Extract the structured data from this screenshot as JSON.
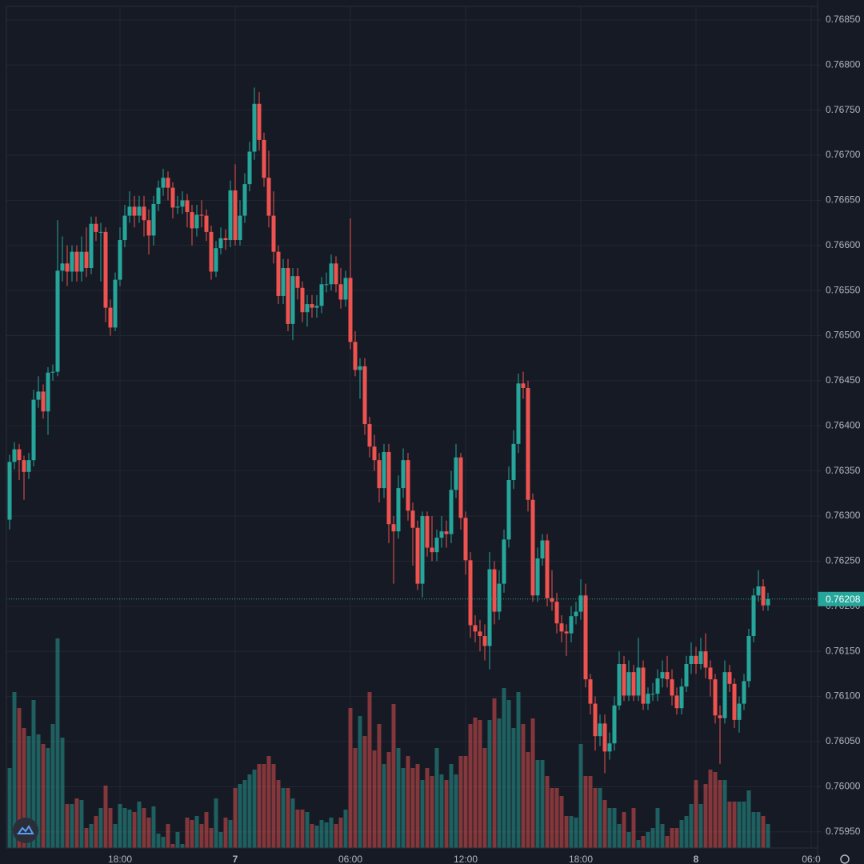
{
  "chart_data": {
    "type": "candlestick",
    "up_color": "#26a69a",
    "down_color": "#ef5350",
    "grid": true,
    "xlim": [
      12.0833,
      54.3333
    ],
    "ylim": [
      0.75932,
      0.76865
    ],
    "xticks": [
      {
        "value": 18,
        "label": "18:00"
      },
      {
        "value": 24,
        "label": "7"
      },
      {
        "value": 30,
        "label": "06:00"
      },
      {
        "value": 36,
        "label": "12:00"
      },
      {
        "value": 42,
        "label": "18:00"
      },
      {
        "value": 48,
        "label": "8"
      },
      {
        "value": 54,
        "label": "06:0"
      }
    ],
    "yticks": [
      {
        "value": 0.7685,
        "label": "0.76850"
      },
      {
        "value": 0.768,
        "label": "0.76800"
      },
      {
        "value": 0.7675,
        "label": "0.76750"
      },
      {
        "value": 0.767,
        "label": "0.76700"
      },
      {
        "value": 0.7665,
        "label": "0.76650"
      },
      {
        "value": 0.766,
        "label": "0.76600"
      },
      {
        "value": 0.7655,
        "label": "0.76550"
      },
      {
        "value": 0.765,
        "label": "0.76500"
      },
      {
        "value": 0.7645,
        "label": "0.76450"
      },
      {
        "value": 0.764,
        "label": "0.76400"
      },
      {
        "value": 0.7635,
        "label": "0.76350"
      },
      {
        "value": 0.763,
        "label": "0.76300"
      },
      {
        "value": 0.7625,
        "label": "0.76250"
      },
      {
        "value": 0.762,
        "label": "0.76200"
      },
      {
        "value": 0.7615,
        "label": "0.76150"
      },
      {
        "value": 0.761,
        "label": "0.76100"
      },
      {
        "value": 0.7605,
        "label": "0.76050"
      },
      {
        "value": 0.76,
        "label": "0.76000"
      },
      {
        "value": 0.7595,
        "label": "0.75950"
      }
    ],
    "last_price": 0.76208,
    "x": [
      12.25,
      12.5,
      12.75,
      13,
      13.25,
      13.5,
      13.75,
      14,
      14.25,
      14.5,
      14.75,
      15,
      15.25,
      15.5,
      15.75,
      16,
      16.25,
      16.5,
      16.75,
      17,
      17.25,
      17.5,
      17.75,
      18,
      18.25,
      18.5,
      18.75,
      19,
      19.25,
      19.5,
      19.75,
      20,
      20.25,
      20.5,
      20.75,
      21,
      21.25,
      21.5,
      21.75,
      22,
      22.25,
      22.5,
      22.75,
      23,
      23.25,
      23.5,
      23.75,
      24,
      24.25,
      24.5,
      24.75,
      25,
      25.25,
      25.5,
      25.75,
      26,
      26.25,
      26.5,
      26.75,
      27,
      27.25,
      27.5,
      27.75,
      28,
      28.25,
      28.5,
      28.75,
      29,
      29.25,
      29.5,
      29.75,
      30,
      30.25,
      30.5,
      30.75,
      31,
      31.25,
      31.5,
      31.75,
      32,
      32.25,
      32.5,
      32.75,
      33,
      33.25,
      33.5,
      33.75,
      34,
      34.25,
      34.5,
      34.75,
      35,
      35.25,
      35.5,
      35.75,
      36,
      36.25,
      36.5,
      36.75,
      37,
      37.25,
      37.5,
      37.75,
      38,
      38.25,
      38.5,
      38.75,
      39,
      39.25,
      39.5,
      39.75,
      40,
      40.25,
      40.5,
      40.75,
      41,
      41.25,
      41.5,
      41.75,
      42,
      42.25,
      42.5,
      42.75,
      43,
      43.25,
      43.5,
      43.75,
      44,
      44.25,
      44.5,
      44.75,
      45,
      45.25,
      45.5,
      45.75,
      46,
      46.25,
      46.5,
      46.75,
      47,
      47.25,
      47.5,
      47.75,
      48,
      48.25,
      48.5,
      48.75,
      49,
      49.25,
      49.5,
      49.75,
      50,
      50.25,
      50.5,
      50.75,
      51,
      51.25,
      51.5,
      51.75
    ],
    "open": [
      0.76296,
      0.7636,
      0.76374,
      0.76362,
      0.76349,
      0.76362,
      0.76429,
      0.76438,
      0.76416,
      0.76459,
      0.7646,
      0.76572,
      0.7658,
      0.76571,
      0.76593,
      0.76571,
      0.76593,
      0.76575,
      0.76624,
      0.76615,
      0.76615,
      0.76531,
      0.76509,
      0.76562,
      0.76606,
      0.76633,
      0.76643,
      0.76633,
      0.76643,
      0.76628,
      0.76611,
      0.76646,
      0.76664,
      0.76675,
      0.76664,
      0.76642,
      0.76643,
      0.7665,
      0.76637,
      0.76619,
      0.76634,
      0.76633,
      0.76615,
      0.76571,
      0.76597,
      0.76608,
      0.76606,
      0.76661,
      0.76606,
      0.76633,
      0.76668,
      0.76704,
      0.76757,
      0.76717,
      0.76675,
      0.76633,
      0.76593,
      0.76544,
      0.76575,
      0.76513,
      0.76566,
      0.76553,
      0.76526,
      0.76535,
      0.76531,
      0.76533,
      0.76557,
      0.76557,
      0.7658,
      0.76557,
      0.7654,
      0.76564,
      0.76493,
      0.76462,
      0.76466,
      0.76402,
      0.76377,
      0.76362,
      0.76331,
      0.76371,
      0.76291,
      0.76283,
      0.76331,
      0.76362,
      0.76306,
      0.76287,
      0.76225,
      0.763,
      0.76265,
      0.7626,
      0.76276,
      0.76283,
      0.7628,
      0.76329,
      0.76365,
      0.76298,
      0.76251,
      0.76179,
      0.76172,
      0.76167,
      0.76156,
      0.76241,
      0.76194,
      0.76225,
      0.76274,
      0.7634,
      0.7638,
      0.76447,
      0.76442,
      0.76318,
      0.76212,
      0.76253,
      0.76273,
      0.76209,
      0.76205,
      0.76181,
      0.76172,
      0.7617,
      0.76189,
      0.76194,
      0.76212,
      0.76119,
      0.76092,
      0.76056,
      0.7607,
      0.76039,
      0.76048,
      0.7609,
      0.76136,
      0.76101,
      0.76127,
      0.76101,
      0.76132,
      0.76092,
      0.76103,
      0.76103,
      0.7612,
      0.76127,
      0.76119,
      0.76101,
      0.76087,
      0.76111,
      0.76136,
      0.76145,
      0.76136,
      0.7615,
      0.76132,
      0.76119,
      0.76079,
      0.76076,
      0.76127,
      0.76114,
      0.76074,
      0.76092,
      0.76117,
      0.76167,
      0.76212,
      0.76222,
      0.76201
    ],
    "high": [
      0.76368,
      0.76382,
      0.7638,
      0.76367,
      0.7637,
      0.7644,
      0.76455,
      0.76446,
      0.76465,
      0.76468,
      0.76628,
      0.7661,
      0.766,
      0.766,
      0.766,
      0.7661,
      0.7662,
      0.76632,
      0.76632,
      0.76625,
      0.7662,
      0.7654,
      0.7657,
      0.7662,
      0.76645,
      0.7666,
      0.76655,
      0.76655,
      0.76655,
      0.7664,
      0.76655,
      0.76672,
      0.76685,
      0.76682,
      0.7667,
      0.76655,
      0.7666,
      0.76657,
      0.76645,
      0.76645,
      0.7665,
      0.7664,
      0.76622,
      0.76605,
      0.7662,
      0.76618,
      0.76672,
      0.7669,
      0.7665,
      0.7668,
      0.76715,
      0.76775,
      0.7677,
      0.76725,
      0.76705,
      0.7666,
      0.766,
      0.76585,
      0.76585,
      0.76575,
      0.76575,
      0.7656,
      0.76545,
      0.76545,
      0.76545,
      0.76565,
      0.7657,
      0.7659,
      0.76588,
      0.76575,
      0.76572,
      0.7663,
      0.76505,
      0.76475,
      0.76475,
      0.7641,
      0.7639,
      0.7637,
      0.7638,
      0.7638,
      0.763,
      0.76345,
      0.76375,
      0.7637,
      0.76315,
      0.76295,
      0.76305,
      0.76305,
      0.763,
      0.76285,
      0.763,
      0.76295,
      0.7635,
      0.7638,
      0.7637,
      0.76305,
      0.7626,
      0.7619,
      0.76185,
      0.7618,
      0.7626,
      0.7625,
      0.7624,
      0.76285,
      0.76355,
      0.76395,
      0.76458,
      0.7646,
      0.7645,
      0.76325,
      0.76265,
      0.7628,
      0.7628,
      0.7624,
      0.76215,
      0.7619,
      0.7618,
      0.762,
      0.76205,
      0.7623,
      0.76225,
      0.76125,
      0.761,
      0.7608,
      0.7608,
      0.7606,
      0.761,
      0.7615,
      0.76145,
      0.7614,
      0.76135,
      0.76165,
      0.7614,
      0.7611,
      0.76115,
      0.7613,
      0.7614,
      0.76145,
      0.7613,
      0.7611,
      0.7612,
      0.76145,
      0.7616,
      0.76155,
      0.76165,
      0.7617,
      0.7614,
      0.76125,
      0.7609,
      0.7614,
      0.76135,
      0.7612,
      0.761,
      0.76125,
      0.76175,
      0.7622,
      0.7624,
      0.7623,
      0.76215
    ],
    "low": [
      0.76285,
      0.76352,
      0.7634,
      0.76318,
      0.76341,
      0.76355,
      0.7642,
      0.76408,
      0.7639,
      0.7645,
      0.76455,
      0.7656,
      0.76555,
      0.7656,
      0.7656,
      0.7656,
      0.76565,
      0.76568,
      0.76605,
      0.7656,
      0.76515,
      0.765,
      0.76505,
      0.76555,
      0.76598,
      0.76625,
      0.7662,
      0.76625,
      0.7661,
      0.7659,
      0.766,
      0.76638,
      0.76655,
      0.7665,
      0.7663,
      0.76635,
      0.76635,
      0.7662,
      0.766,
      0.7661,
      0.7662,
      0.76605,
      0.76562,
      0.76565,
      0.7659,
      0.76595,
      0.76598,
      0.766,
      0.766,
      0.76625,
      0.7666,
      0.76695,
      0.76705,
      0.76665,
      0.7662,
      0.7658,
      0.76535,
      0.76535,
      0.76505,
      0.76495,
      0.7654,
      0.76515,
      0.7651,
      0.7652,
      0.7652,
      0.76525,
      0.76548,
      0.7655,
      0.76548,
      0.7653,
      0.76532,
      0.76485,
      0.76455,
      0.7643,
      0.7639,
      0.76365,
      0.7635,
      0.76315,
      0.7632,
      0.7627,
      0.76225,
      0.76275,
      0.7632,
      0.76295,
      0.76245,
      0.76218,
      0.7621,
      0.76255,
      0.7625,
      0.7625,
      0.76265,
      0.76265,
      0.7627,
      0.7632,
      0.76285,
      0.76235,
      0.76165,
      0.7616,
      0.7615,
      0.7614,
      0.7613,
      0.7618,
      0.76185,
      0.76215,
      0.76265,
      0.7633,
      0.7637,
      0.7643,
      0.76305,
      0.76205,
      0.76205,
      0.76245,
      0.762,
      0.76195,
      0.7617,
      0.7616,
      0.76145,
      0.7616,
      0.7618,
      0.76185,
      0.7611,
      0.7608,
      0.7604,
      0.76045,
      0.76015,
      0.7603,
      0.7604,
      0.76085,
      0.76095,
      0.76095,
      0.76095,
      0.76095,
      0.76085,
      0.76085,
      0.76095,
      0.76095,
      0.7611,
      0.7611,
      0.7609,
      0.7608,
      0.7608,
      0.76105,
      0.76125,
      0.76125,
      0.7613,
      0.7612,
      0.761,
      0.7607,
      0.76025,
      0.7607,
      0.76105,
      0.76065,
      0.7606,
      0.76085,
      0.7611,
      0.7616,
      0.76205,
      0.76195,
      0.76195
    ],
    "close": [
      0.7636,
      0.76374,
      0.76362,
      0.76349,
      0.76362,
      0.76429,
      0.76438,
      0.76416,
      0.76459,
      0.7646,
      0.76572,
      0.7658,
      0.76571,
      0.76593,
      0.76571,
      0.76593,
      0.76575,
      0.76624,
      0.76615,
      0.76615,
      0.76531,
      0.76509,
      0.76562,
      0.76606,
      0.76633,
      0.76643,
      0.76633,
      0.76643,
      0.76628,
      0.76611,
      0.76646,
      0.76664,
      0.76675,
      0.76664,
      0.76642,
      0.76643,
      0.7665,
      0.76637,
      0.76619,
      0.76634,
      0.76633,
      0.76615,
      0.76571,
      0.76597,
      0.76608,
      0.76606,
      0.76661,
      0.76606,
      0.76633,
      0.76668,
      0.76704,
      0.76757,
      0.76717,
      0.76675,
      0.76633,
      0.76593,
      0.76544,
      0.76575,
      0.76513,
      0.76566,
      0.76553,
      0.76526,
      0.76535,
      0.76531,
      0.76533,
      0.76557,
      0.76557,
      0.7658,
      0.76557,
      0.7654,
      0.76564,
      0.76493,
      0.76462,
      0.76466,
      0.76402,
      0.76377,
      0.76362,
      0.76331,
      0.76371,
      0.76291,
      0.76283,
      0.76331,
      0.76362,
      0.76306,
      0.76287,
      0.76225,
      0.763,
      0.76265,
      0.7626,
      0.76276,
      0.76283,
      0.7628,
      0.76329,
      0.76365,
      0.76298,
      0.76251,
      0.76179,
      0.76172,
      0.76167,
      0.76156,
      0.76241,
      0.76194,
      0.76225,
      0.76274,
      0.7634,
      0.7638,
      0.76447,
      0.76442,
      0.76318,
      0.76212,
      0.76253,
      0.76273,
      0.76209,
      0.76205,
      0.76181,
      0.76172,
      0.7617,
      0.76189,
      0.76194,
      0.76212,
      0.76119,
      0.76092,
      0.76056,
      0.7607,
      0.76039,
      0.76048,
      0.7609,
      0.76136,
      0.76101,
      0.76127,
      0.76101,
      0.76132,
      0.76092,
      0.76103,
      0.76103,
      0.7612,
      0.76127,
      0.76119,
      0.76101,
      0.76087,
      0.76111,
      0.76136,
      0.76145,
      0.76136,
      0.7615,
      0.76132,
      0.76119,
      0.76079,
      0.76076,
      0.76127,
      0.76114,
      0.76074,
      0.76092,
      0.76117,
      0.76167,
      0.76212,
      0.76222,
      0.76201,
      0.76208
    ],
    "volume": [
      100,
      195,
      175,
      150,
      140,
      185,
      142,
      130,
      125,
      155,
      262,
      138,
      55,
      55,
      62,
      60,
      25,
      30,
      40,
      50,
      78,
      50,
      30,
      55,
      50,
      48,
      45,
      58,
      50,
      38,
      52,
      18,
      14,
      30,
      5,
      20,
      5,
      38,
      35,
      40,
      30,
      45,
      25,
      62,
      20,
      38,
      35,
      75,
      80,
      85,
      92,
      98,
      105,
      105,
      115,
      105,
      85,
      75,
      75,
      62,
      48,
      48,
      45,
      30,
      28,
      35,
      32,
      38,
      30,
      38,
      48,
      175,
      125,
      165,
      140,
      195,
      122,
      155,
      105,
      120,
      180,
      125,
      100,
      115,
      100,
      105,
      85,
      100,
      90,
      125,
      92,
      85,
      105,
      92,
      115,
      115,
      155,
      163,
      160,
      125,
      160,
      187,
      162,
      200,
      185,
      150,
      195,
      155,
      120,
      162,
      110,
      110,
      90,
      75,
      75,
      65,
      40,
      40,
      38,
      130,
      90,
      90,
      75,
      75,
      60,
      50,
      50,
      30,
      45,
      20,
      50,
      10,
      15,
      20,
      25,
      50,
      30,
      15,
      25,
      25,
      35,
      40,
      55,
      85,
      55,
      80,
      98,
      95,
      85,
      85,
      58,
      58,
      58,
      58,
      72,
      45,
      45,
      40,
      30
    ]
  }
}
